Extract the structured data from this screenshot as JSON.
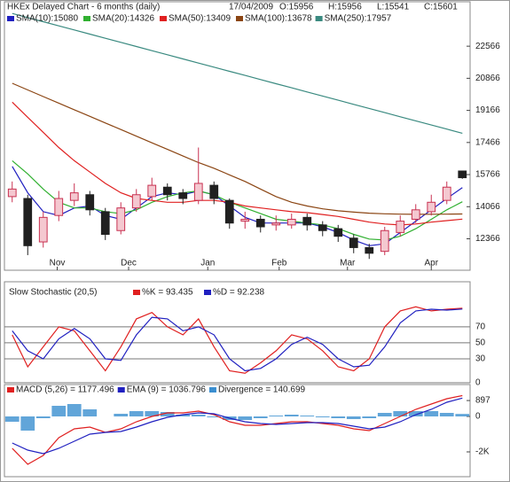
{
  "chart_data": [
    {
      "type": "candlestick",
      "title": "HKEx  Delayed Chart - 6 months (daily)",
      "date": "17/04/2009",
      "quote": [
        "O:15956",
        "H:15956",
        "L:15541",
        "C:15601"
      ],
      "up_color": "#c83050",
      "down_color": "#202020",
      "open": [
        14600,
        14500,
        12200,
        13600,
        14400,
        14700,
        13800,
        12800,
        14000,
        14600,
        15100,
        14800,
        14400,
        15200,
        14400,
        13300,
        13400,
        13100,
        13100,
        13500,
        13100,
        12900,
        12400,
        11900,
        11700,
        12700,
        13400,
        13800,
        14400,
        15956
      ],
      "high": [
        15400,
        14700,
        13800,
        14900,
        15300,
        14900,
        14000,
        14300,
        15000,
        15600,
        15300,
        15000,
        17200,
        15400,
        14500,
        13800,
        13600,
        13600,
        13700,
        13700,
        13300,
        13100,
        12600,
        12100,
        13000,
        13600,
        14200,
        14700,
        15400,
        15956
      ],
      "low": [
        14300,
        11500,
        11900,
        13300,
        14100,
        13600,
        12300,
        12600,
        13800,
        14400,
        14400,
        14200,
        14200,
        14200,
        12900,
        12900,
        12700,
        12800,
        12900,
        12800,
        12500,
        12200,
        11600,
        11300,
        11500,
        12500,
        13200,
        13600,
        14200,
        15541
      ],
      "close": [
        15000,
        12000,
        13500,
        14500,
        14800,
        13900,
        12600,
        14000,
        14700,
        15200,
        14700,
        14500,
        15300,
        14500,
        13200,
        13400,
        13000,
        13200,
        13400,
        13100,
        12800,
        12500,
        11900,
        11600,
        12800,
        13300,
        13900,
        14300,
        15100,
        15601
      ],
      "series": [
        {
          "name": "SMA(10):15080",
          "color": "#2020c0",
          "values": [
            16200,
            14800,
            13800,
            13600,
            14000,
            14100,
            13600,
            13400,
            14000,
            14600,
            14800,
            14700,
            14900,
            14700,
            14100,
            13500,
            13200,
            13200,
            13200,
            13200,
            13000,
            12700,
            12300,
            12000,
            12100,
            12700,
            13300,
            13900,
            14500,
            15080
          ]
        },
        {
          "name": "SMA(20):14326",
          "color": "#30b030",
          "values": [
            16500,
            15800,
            15000,
            14300,
            14000,
            14000,
            13800,
            13700,
            13900,
            14300,
            14600,
            14800,
            14900,
            14700,
            14300,
            14000,
            13700,
            13400,
            13300,
            13200,
            13100,
            12900,
            12600,
            12350,
            12300,
            12500,
            12900,
            13400,
            13900,
            14326
          ]
        },
        {
          "name": "SMA(50):13409",
          "color": "#e02020",
          "values": [
            19600,
            18800,
            18000,
            17200,
            16500,
            15900,
            15300,
            14800,
            14500,
            14400,
            14300,
            14300,
            14400,
            14400,
            14300,
            14100,
            14000,
            13900,
            13800,
            13750,
            13650,
            13550,
            13400,
            13250,
            13150,
            13100,
            13150,
            13250,
            13330,
            13409
          ]
        },
        {
          "name": "SMA(100):13678",
          "color": "#8b4513",
          "values": [
            20600,
            20250,
            19900,
            19550,
            19200,
            18850,
            18500,
            18150,
            17800,
            17450,
            17100,
            16750,
            16400,
            16100,
            15750,
            15400,
            15000,
            14600,
            14300,
            14100,
            13950,
            13850,
            13780,
            13720,
            13690,
            13670,
            13660,
            13665,
            13670,
            13678
          ]
        },
        {
          "name": "SMA(250):17957",
          "color": "#3a8a80",
          "values": [
            24300,
            24081,
            23862,
            23644,
            23425,
            23206,
            22987,
            22768,
            22550,
            22331,
            22112,
            21893,
            21674,
            21456,
            21237,
            21018,
            20799,
            20580,
            20362,
            20143,
            19924,
            19705,
            19486,
            19267,
            19049,
            18830,
            18611,
            18392,
            18174,
            17957
          ]
        }
      ],
      "xlim": [
        -0.5,
        29.5
      ],
      "xticks": [
        {
          "value": 2.9,
          "label": "Nov"
        },
        {
          "value": 7.5,
          "label": "Dec"
        },
        {
          "value": 12.6,
          "label": "Jan"
        },
        {
          "value": 17.2,
          "label": "Feb"
        },
        {
          "value": 21.6,
          "label": "Mar"
        },
        {
          "value": 27.0,
          "label": "Apr"
        }
      ],
      "ylim": [
        10700,
        24450
      ],
      "yticks": [
        12366,
        14066,
        15766,
        17466,
        19166,
        20866,
        22566
      ]
    },
    {
      "type": "line",
      "title": "Slow Stochastic (20,5)",
      "series": [
        {
          "name": "%K = 93.435",
          "color": "#e02020",
          "values": [
            60,
            20,
            45,
            70,
            65,
            40,
            15,
            45,
            80,
            88,
            70,
            60,
            80,
            45,
            15,
            12,
            25,
            40,
            60,
            55,
            40,
            20,
            15,
            30,
            70,
            90,
            95,
            90,
            92,
            93.435
          ]
        },
        {
          "name": "%D = 92.238",
          "color": "#2020c0",
          "values": [
            65,
            40,
            30,
            55,
            68,
            55,
            30,
            28,
            60,
            82,
            80,
            65,
            70,
            60,
            30,
            15,
            18,
            30,
            48,
            57,
            48,
            30,
            20,
            22,
            45,
            75,
            90,
            92,
            91,
            92.238
          ]
        }
      ],
      "ylim": [
        0,
        122
      ],
      "yticks": [
        0,
        30,
        50,
        70
      ],
      "grid": true
    },
    {
      "type": "macd",
      "series": [
        {
          "name": "MACD (5,26) = 1177.496",
          "color": "#e02020",
          "kind": "line",
          "values": [
            -1800,
            -2700,
            -2200,
            -1200,
            -700,
            -600,
            -900,
            -700,
            -300,
            0,
            200,
            200,
            300,
            100,
            -300,
            -500,
            -500,
            -400,
            -300,
            -300,
            -400,
            -500,
            -700,
            -800,
            -400,
            0,
            400,
            700,
            1000,
            1177.496
          ]
        },
        {
          "name": "EMA (9) = 1036.796",
          "color": "#2020c0",
          "kind": "line",
          "values": [
            -1500,
            -1900,
            -2100,
            -1800,
            -1400,
            -1000,
            -900,
            -850,
            -600,
            -300,
            -50,
            100,
            200,
            150,
            -100,
            -300,
            -400,
            -450,
            -400,
            -350,
            -350,
            -400,
            -550,
            -700,
            -600,
            -300,
            100,
            400,
            800,
            1036.796
          ]
        },
        {
          "name": "Divergence = 140.699",
          "color": "#3a8ed0",
          "kind": "bar",
          "values": [
            -300,
            -800,
            -100,
            600,
            700,
            400,
            0,
            150,
            300,
            300,
            250,
            100,
            100,
            -50,
            -200,
            -200,
            -100,
            50,
            100,
            50,
            -50,
            -100,
            -150,
            -100,
            200,
            300,
            300,
            300,
            200,
            140.699
          ]
        }
      ],
      "ylim": [
        -3400,
        1700
      ],
      "yticks": [
        {
          "value": -2000,
          "label": "-2K"
        },
        0,
        897
      ]
    }
  ]
}
